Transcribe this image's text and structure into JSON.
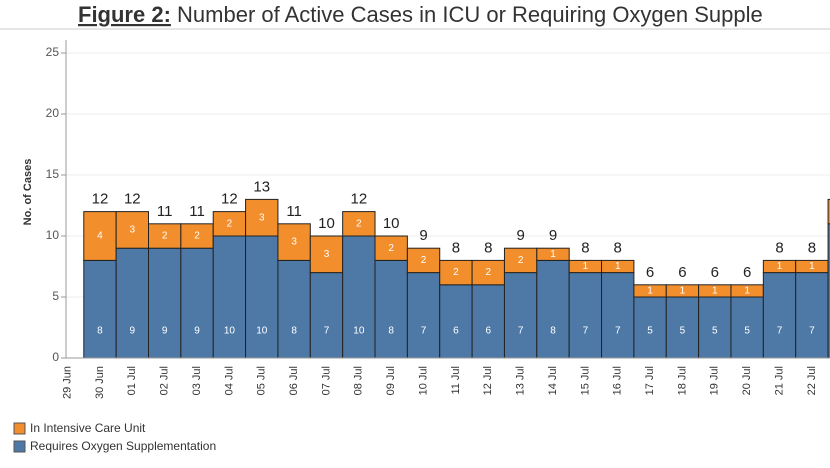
{
  "chart_data": {
    "type": "stacked_bar",
    "title_prefix": "Figure 2:",
    "title": "Number of Active Cases in ICU or Requiring Oxygen Supple",
    "y_label": "No. of Cases",
    "categories": [
      "29 Jun",
      "30 Jun",
      "01 Jul",
      "02 Jul",
      "03 Jul",
      "04 Jul",
      "05 Jul",
      "06 Jul",
      "07 Jul",
      "08 Jul",
      "09 Jul",
      "10 Jul",
      "11 Jul",
      "12 Jul",
      "13 Jul",
      "14 Jul",
      "15 Jul",
      "16 Jul",
      "17 Jul",
      "18 Jul",
      "19 Jul",
      "20 Jul",
      "21 Jul",
      "22 Jul",
      null
    ],
    "series": [
      {
        "name": "Requires Oxygen Supplementation",
        "color": "#4e79a7",
        "values": [
          null,
          8,
          9,
          9,
          9,
          10,
          10,
          8,
          7,
          10,
          8,
          7,
          6,
          6,
          7,
          8,
          7,
          7,
          5,
          5,
          5,
          5,
          7,
          7,
          11
        ]
      },
      {
        "name": "In Intensive Care Unit",
        "color": "#f28e2b",
        "values": [
          null,
          4,
          3,
          2,
          2,
          2,
          3,
          3,
          3,
          2,
          2,
          2,
          2,
          2,
          2,
          1,
          1,
          1,
          1,
          1,
          1,
          1,
          1,
          1,
          2
        ]
      }
    ],
    "totals": [
      null,
      12,
      12,
      11,
      11,
      12,
      13,
      11,
      10,
      12,
      10,
      9,
      8,
      8,
      9,
      9,
      8,
      8,
      6,
      6,
      6,
      6,
      8,
      8,
      null
    ],
    "legend_order": [
      1,
      0
    ],
    "ylim": [
      0,
      25
    ],
    "yticks": [
      0,
      5,
      10,
      15,
      20,
      25
    ],
    "grid": true
  }
}
